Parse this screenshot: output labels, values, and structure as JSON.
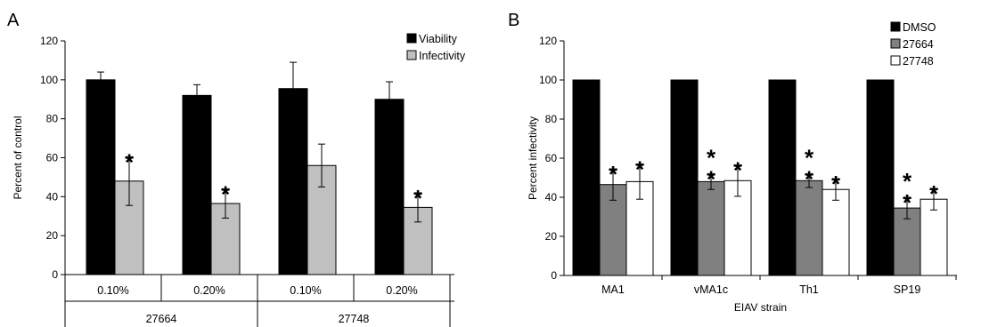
{
  "chart_data": [
    {
      "panel_label": "A",
      "type": "bar",
      "ylabel": "Percent of control",
      "ylim": [
        0,
        120
      ],
      "yticks": [
        "0",
        "20",
        "40",
        "60",
        "80",
        "100",
        "120"
      ],
      "categories": [
        "0.10%",
        "0.20%",
        "0.10%",
        "0.20%"
      ],
      "groups": [
        {
          "label": "27664",
          "span": [
            0,
            1
          ]
        },
        {
          "label": "27748",
          "span": [
            2,
            3
          ]
        }
      ],
      "legend_position": "top-right",
      "series": [
        {
          "name": "Viability",
          "color": "#000000",
          "values": [
            100,
            92,
            95.5,
            90
          ],
          "errors": [
            4,
            5.5,
            13.5,
            9
          ]
        },
        {
          "name": "Infectivity",
          "color": "#c0c0c0",
          "values": [
            48,
            36.5,
            56,
            34.5
          ],
          "errors": [
            12.5,
            7.5,
            11,
            7.5
          ]
        }
      ],
      "annotations": [
        {
          "text": "*",
          "series": 1,
          "category": 0
        },
        {
          "text": "*",
          "series": 1,
          "category": 1
        },
        {
          "text": "*",
          "series": 1,
          "category": 3
        }
      ]
    },
    {
      "panel_label": "B",
      "type": "bar",
      "xlabel": "EIAV strain",
      "ylabel": "Percent infectivity",
      "ylim": [
        0,
        120
      ],
      "yticks": [
        "0",
        "20",
        "40",
        "60",
        "80",
        "100",
        "120"
      ],
      "categories": [
        "MA1",
        "vMA1c",
        "Th1",
        "SP19"
      ],
      "legend_position": "top-right",
      "series": [
        {
          "name": "DMSO",
          "color": "#000000",
          "values": [
            100,
            100,
            100,
            100
          ],
          "errors": [
            0,
            0,
            0,
            0
          ]
        },
        {
          "name": "27664",
          "color": "#808080",
          "values": [
            46.5,
            48,
            48.5,
            34.5
          ],
          "errors": [
            8,
            4,
            3.5,
            5.5
          ]
        },
        {
          "name": "27748",
          "color": "#ffffff",
          "values": [
            48,
            48.5,
            44,
            39
          ],
          "errors": [
            9,
            8,
            5.5,
            5.5
          ]
        }
      ],
      "annotations": [
        {
          "text": "*",
          "series": 1,
          "category": 0
        },
        {
          "text": "*",
          "series": 2,
          "category": 0
        },
        {
          "text": "**",
          "series": 1,
          "category": 1
        },
        {
          "text": "*",
          "series": 2,
          "category": 1
        },
        {
          "text": "**",
          "series": 1,
          "category": 2
        },
        {
          "text": "*",
          "series": 2,
          "category": 2
        },
        {
          "text": "**",
          "series": 1,
          "category": 3
        },
        {
          "text": "*",
          "series": 2,
          "category": 3
        }
      ]
    }
  ]
}
